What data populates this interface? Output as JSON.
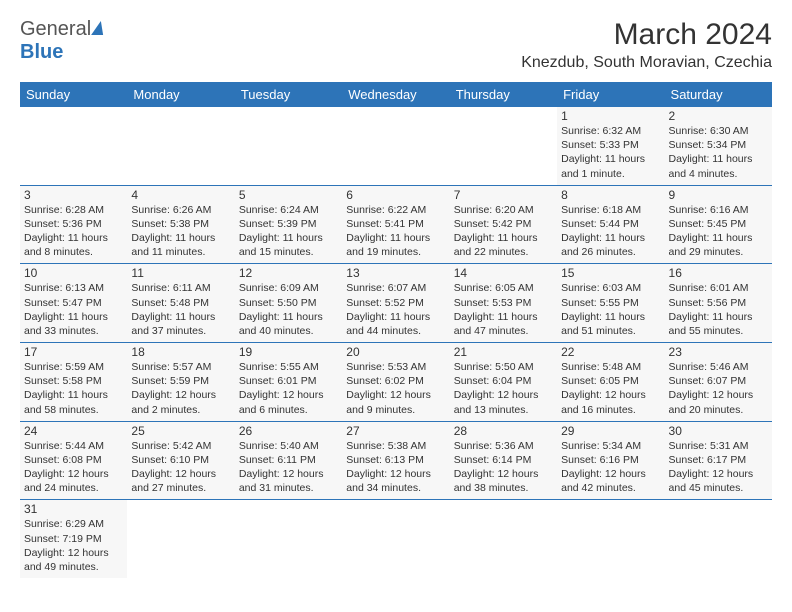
{
  "brand": {
    "general": "General",
    "blue": "Blue"
  },
  "title": "March 2024",
  "location": "Knezdub, South Moravian, Czechia",
  "colors": {
    "accent": "#2d74b8",
    "row_bg": "#f7f7f7",
    "border": "#2d74b8"
  },
  "weekdays": [
    "Sunday",
    "Monday",
    "Tuesday",
    "Wednesday",
    "Thursday",
    "Friday",
    "Saturday"
  ],
  "weeks": [
    [
      null,
      null,
      null,
      null,
      null,
      {
        "n": "1",
        "sunrise": "6:32 AM",
        "sunset": "5:33 PM",
        "daylight": "11 hours and 1 minute."
      },
      {
        "n": "2",
        "sunrise": "6:30 AM",
        "sunset": "5:34 PM",
        "daylight": "11 hours and 4 minutes."
      }
    ],
    [
      {
        "n": "3",
        "sunrise": "6:28 AM",
        "sunset": "5:36 PM",
        "daylight": "11 hours and 8 minutes."
      },
      {
        "n": "4",
        "sunrise": "6:26 AM",
        "sunset": "5:38 PM",
        "daylight": "11 hours and 11 minutes."
      },
      {
        "n": "5",
        "sunrise": "6:24 AM",
        "sunset": "5:39 PM",
        "daylight": "11 hours and 15 minutes."
      },
      {
        "n": "6",
        "sunrise": "6:22 AM",
        "sunset": "5:41 PM",
        "daylight": "11 hours and 19 minutes."
      },
      {
        "n": "7",
        "sunrise": "6:20 AM",
        "sunset": "5:42 PM",
        "daylight": "11 hours and 22 minutes."
      },
      {
        "n": "8",
        "sunrise": "6:18 AM",
        "sunset": "5:44 PM",
        "daylight": "11 hours and 26 minutes."
      },
      {
        "n": "9",
        "sunrise": "6:16 AM",
        "sunset": "5:45 PM",
        "daylight": "11 hours and 29 minutes."
      }
    ],
    [
      {
        "n": "10",
        "sunrise": "6:13 AM",
        "sunset": "5:47 PM",
        "daylight": "11 hours and 33 minutes."
      },
      {
        "n": "11",
        "sunrise": "6:11 AM",
        "sunset": "5:48 PM",
        "daylight": "11 hours and 37 minutes."
      },
      {
        "n": "12",
        "sunrise": "6:09 AM",
        "sunset": "5:50 PM",
        "daylight": "11 hours and 40 minutes."
      },
      {
        "n": "13",
        "sunrise": "6:07 AM",
        "sunset": "5:52 PM",
        "daylight": "11 hours and 44 minutes."
      },
      {
        "n": "14",
        "sunrise": "6:05 AM",
        "sunset": "5:53 PM",
        "daylight": "11 hours and 47 minutes."
      },
      {
        "n": "15",
        "sunrise": "6:03 AM",
        "sunset": "5:55 PM",
        "daylight": "11 hours and 51 minutes."
      },
      {
        "n": "16",
        "sunrise": "6:01 AM",
        "sunset": "5:56 PM",
        "daylight": "11 hours and 55 minutes."
      }
    ],
    [
      {
        "n": "17",
        "sunrise": "5:59 AM",
        "sunset": "5:58 PM",
        "daylight": "11 hours and 58 minutes."
      },
      {
        "n": "18",
        "sunrise": "5:57 AM",
        "sunset": "5:59 PM",
        "daylight": "12 hours and 2 minutes."
      },
      {
        "n": "19",
        "sunrise": "5:55 AM",
        "sunset": "6:01 PM",
        "daylight": "12 hours and 6 minutes."
      },
      {
        "n": "20",
        "sunrise": "5:53 AM",
        "sunset": "6:02 PM",
        "daylight": "12 hours and 9 minutes."
      },
      {
        "n": "21",
        "sunrise": "5:50 AM",
        "sunset": "6:04 PM",
        "daylight": "12 hours and 13 minutes."
      },
      {
        "n": "22",
        "sunrise": "5:48 AM",
        "sunset": "6:05 PM",
        "daylight": "12 hours and 16 minutes."
      },
      {
        "n": "23",
        "sunrise": "5:46 AM",
        "sunset": "6:07 PM",
        "daylight": "12 hours and 20 minutes."
      }
    ],
    [
      {
        "n": "24",
        "sunrise": "5:44 AM",
        "sunset": "6:08 PM",
        "daylight": "12 hours and 24 minutes."
      },
      {
        "n": "25",
        "sunrise": "5:42 AM",
        "sunset": "6:10 PM",
        "daylight": "12 hours and 27 minutes."
      },
      {
        "n": "26",
        "sunrise": "5:40 AM",
        "sunset": "6:11 PM",
        "daylight": "12 hours and 31 minutes."
      },
      {
        "n": "27",
        "sunrise": "5:38 AM",
        "sunset": "6:13 PM",
        "daylight": "12 hours and 34 minutes."
      },
      {
        "n": "28",
        "sunrise": "5:36 AM",
        "sunset": "6:14 PM",
        "daylight": "12 hours and 38 minutes."
      },
      {
        "n": "29",
        "sunrise": "5:34 AM",
        "sunset": "6:16 PM",
        "daylight": "12 hours and 42 minutes."
      },
      {
        "n": "30",
        "sunrise": "5:31 AM",
        "sunset": "6:17 PM",
        "daylight": "12 hours and 45 minutes."
      }
    ],
    [
      {
        "n": "31",
        "sunrise": "6:29 AM",
        "sunset": "7:19 PM",
        "daylight": "12 hours and 49 minutes."
      },
      null,
      null,
      null,
      null,
      null,
      null
    ]
  ]
}
